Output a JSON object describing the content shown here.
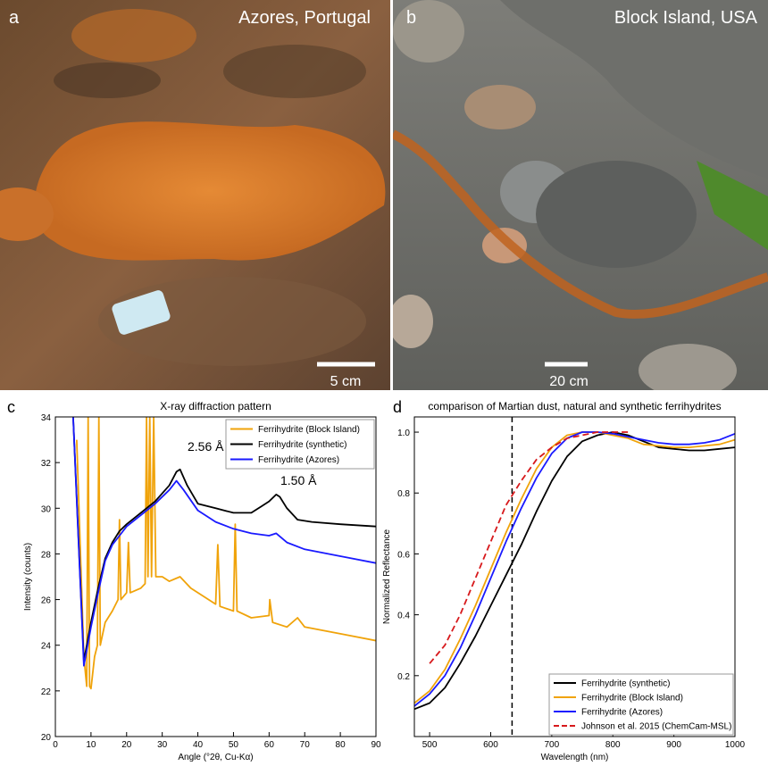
{
  "photos": [
    {
      "label": "a",
      "location": "Azores, Portugal",
      "scale": "5 cm"
    },
    {
      "label": "b",
      "location": "Block Island, USA",
      "scale": "20 cm"
    }
  ],
  "chart_data": [
    {
      "type": "line",
      "label": "c",
      "title": "X-ray diffraction pattern",
      "xlabel": "Angle (°2θ, Cu-Kα)",
      "ylabel": "Intensity (counts)",
      "xlim": [
        0,
        90
      ],
      "ylim": [
        20,
        34
      ],
      "xticks": [
        0,
        10,
        20,
        30,
        40,
        50,
        60,
        70,
        80,
        90
      ],
      "yticks": [
        20,
        22,
        24,
        26,
        28,
        30,
        32,
        34
      ],
      "legend": "upper right",
      "annotations": [
        "2.56 Å",
        "1.50 Å"
      ],
      "series": [
        {
          "name": "Ferrihydrite (Block Island)",
          "color": "#f0a30a",
          "x": [
            6,
            8,
            8.8,
            9.2,
            9.6,
            10,
            11,
            11.8,
            12.2,
            12.6,
            14,
            16,
            17.6,
            18,
            18.4,
            20,
            20.5,
            21,
            24,
            25.2,
            25.6,
            26,
            26.5,
            27,
            27.6,
            28.2,
            30,
            32,
            35,
            38,
            42,
            45,
            45.6,
            46.2,
            50,
            50.5,
            51,
            55,
            60,
            60.2,
            61,
            65,
            68,
            70,
            80,
            90
          ],
          "values": [
            33,
            23.5,
            22.2,
            34,
            22.2,
            22.1,
            23.5,
            24,
            34,
            24,
            25,
            25.5,
            26,
            29.5,
            26,
            26.3,
            28.5,
            26.3,
            26.5,
            26.7,
            34,
            27,
            34,
            27,
            34,
            27,
            27,
            26.8,
            27,
            26.5,
            26.1,
            25.8,
            28.4,
            25.7,
            25.5,
            29.3,
            25.5,
            25.2,
            25.3,
            26,
            25,
            24.8,
            25.2,
            24.8,
            24.5,
            24.2
          ]
        },
        {
          "name": "Ferrihydrite (synthetic)",
          "color": "#000000",
          "x": [
            5,
            8,
            10,
            12,
            14,
            16,
            18,
            20,
            24,
            28,
            32,
            34,
            35,
            37,
            40,
            45,
            50,
            55,
            58,
            60,
            62,
            63,
            65,
            68,
            72,
            80,
            90
          ],
          "values": [
            34,
            23.3,
            25,
            26.5,
            27.8,
            28.5,
            29,
            29.3,
            29.8,
            30.3,
            31,
            31.6,
            31.7,
            31,
            30.2,
            30,
            29.8,
            29.8,
            30.1,
            30.3,
            30.6,
            30.5,
            30,
            29.5,
            29.4,
            29.3,
            29.2
          ]
        },
        {
          "name": "Ferrihydrite (Azores)",
          "color": "#1a1aff",
          "x": [
            5,
            8,
            10,
            12,
            14,
            16,
            20,
            24,
            28,
            32,
            34,
            36,
            40,
            45,
            50,
            55,
            60,
            62,
            65,
            70,
            80,
            90
          ],
          "values": [
            34,
            23.1,
            24.8,
            26.3,
            27.7,
            28.4,
            29.2,
            29.7,
            30.2,
            30.8,
            31.2,
            30.8,
            29.9,
            29.4,
            29.1,
            28.9,
            28.8,
            28.9,
            28.5,
            28.2,
            27.9,
            27.6
          ]
        }
      ]
    },
    {
      "type": "line",
      "label": "d",
      "title": "comparison of Martian dust, natural and synthetic ferrihydrites",
      "xlabel": "Wavelength (nm)",
      "ylabel": "Normalized Reflectance",
      "xlim": [
        475,
        1000
      ],
      "ylim": [
        0,
        1.05
      ],
      "xticks": [
        500,
        600,
        700,
        800,
        900,
        1000
      ],
      "yticks": [
        0.2,
        0.4,
        0.6,
        0.8,
        {
          "value": 1,
          "label": "1.0"
        }
      ],
      "vline": 635,
      "legend": "lower right",
      "x": [
        475,
        500,
        525,
        550,
        575,
        600,
        625,
        650,
        675,
        700,
        725,
        750,
        775,
        800,
        825,
        850,
        875,
        900,
        925,
        950,
        975,
        1000
      ],
      "series": [
        {
          "name": "Ferrihydrite (synthetic)",
          "color": "#000000",
          "values": [
            0.09,
            0.11,
            0.16,
            0.24,
            0.33,
            0.43,
            0.53,
            0.63,
            0.74,
            0.84,
            0.92,
            0.97,
            0.99,
            1.0,
            0.99,
            0.97,
            0.95,
            0.945,
            0.94,
            0.94,
            0.945,
            0.95
          ]
        },
        {
          "name": "Ferrihydrite (Block Island)",
          "color": "#f0a30a",
          "values": [
            0.11,
            0.15,
            0.22,
            0.32,
            0.43,
            0.55,
            0.67,
            0.78,
            0.88,
            0.95,
            0.99,
            1.0,
            1.0,
            0.99,
            0.98,
            0.96,
            0.955,
            0.95,
            0.95,
            0.955,
            0.96,
            0.975
          ]
        },
        {
          "name": "Ferrihydrite (Azores)",
          "color": "#1a1aff",
          "values": [
            0.1,
            0.14,
            0.2,
            0.29,
            0.4,
            0.52,
            0.64,
            0.75,
            0.85,
            0.93,
            0.98,
            1.0,
            1.0,
            0.995,
            0.985,
            0.975,
            0.965,
            0.96,
            0.96,
            0.965,
            0.975,
            0.995
          ]
        },
        {
          "name": "Johnson et al. 2015 (ChemCam-MSL)",
          "color": "#d7191c",
          "dash": true,
          "values": [
            null,
            0.24,
            0.3,
            0.4,
            0.52,
            0.64,
            0.76,
            0.84,
            0.91,
            0.95,
            0.98,
            0.99,
            1.0,
            1.0,
            1.0,
            null,
            null,
            null,
            null,
            null,
            null,
            null
          ]
        }
      ]
    }
  ]
}
